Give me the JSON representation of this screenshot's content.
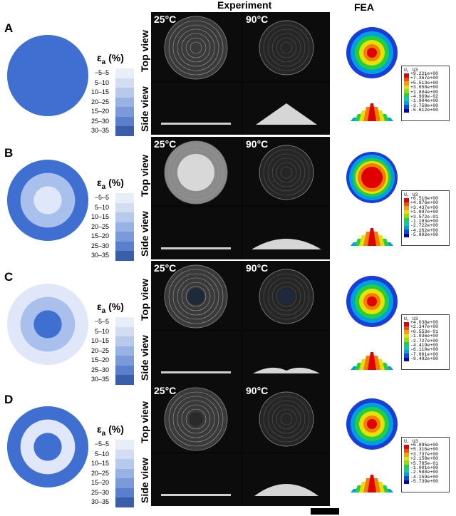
{
  "headers": {
    "experiment": "Experiment",
    "fea": "FEA"
  },
  "legend": {
    "title_main": "ε",
    "title_sub": "a",
    "title_unit": " (%)",
    "labels": [
      "−5–5",
      "5–10",
      "10–15",
      "20–25",
      "15–20",
      "25–30",
      "30–35"
    ],
    "colors": [
      "#e8eef8",
      "#d2ddf2",
      "#b8caec",
      "#98b2e4",
      "#7a9ad9",
      "#5a7fcc",
      "#3a5fa8"
    ]
  },
  "row_labels": {
    "top": "Top view",
    "side": "Side view"
  },
  "temps": {
    "t1": "25°C",
    "t2": "90°C"
  },
  "fea_scale_colors": [
    "#e00000",
    "#f05000",
    "#f8a000",
    "#e8e000",
    "#90e000",
    "#20d040",
    "#00d0b0",
    "#00a0e0",
    "#0050e0",
    "#0000c0"
  ],
  "panels": [
    {
      "letter": "A",
      "rings": [
        "#3f6fd0"
      ],
      "fea_title": "U, U3",
      "fea_values": [
        "+9.221e+00",
        "+7.367e+00",
        "+5.513e+00",
        "+3.658e+00",
        "+1.804e+00",
        "-4.969e-02",
        "-1.904e+00",
        "-3.758e+00",
        "-5.612e+00"
      ]
    },
    {
      "letter": "B",
      "rings": [
        "#3f6fd0",
        "#a9c0ec",
        "#dfe7f8"
      ],
      "fea_title": "U, U3",
      "fea_values": [
        "+6.516e+00",
        "+4.976e+00",
        "+3.437e+00",
        "+1.897e+00",
        "+3.572e-01",
        "-1.183e+00",
        "-2.722e+00",
        "-4.262e+00",
        "-5.802e+00"
      ]
    },
    {
      "letter": "C",
      "rings": [
        "#dfe7f8",
        "#a9c0ec",
        "#3f6fd0"
      ],
      "fea_title": "U, U3",
      "fea_values": [
        "+4.038e+00",
        "+2.347e+00",
        "+6.553e-01",
        "-1.036e+00",
        "-2.727e+00",
        "-4.419e+00",
        "-6.110e+00",
        "-7.801e+00",
        "-9.492e+00"
      ]
    },
    {
      "letter": "D",
      "rings": [
        "#3f6fd0",
        "#dfe7f8",
        "#3f6fd0"
      ],
      "fea_title": "U, U3",
      "fea_values": [
        "+6.895e+00",
        "+5.316e+00",
        "+3.737e+00",
        "+2.158e+00",
        "+5.785e-01",
        "-1.001e+00",
        "-2.580e+00",
        "-4.159e+00",
        "-5.739e+00"
      ]
    }
  ]
}
